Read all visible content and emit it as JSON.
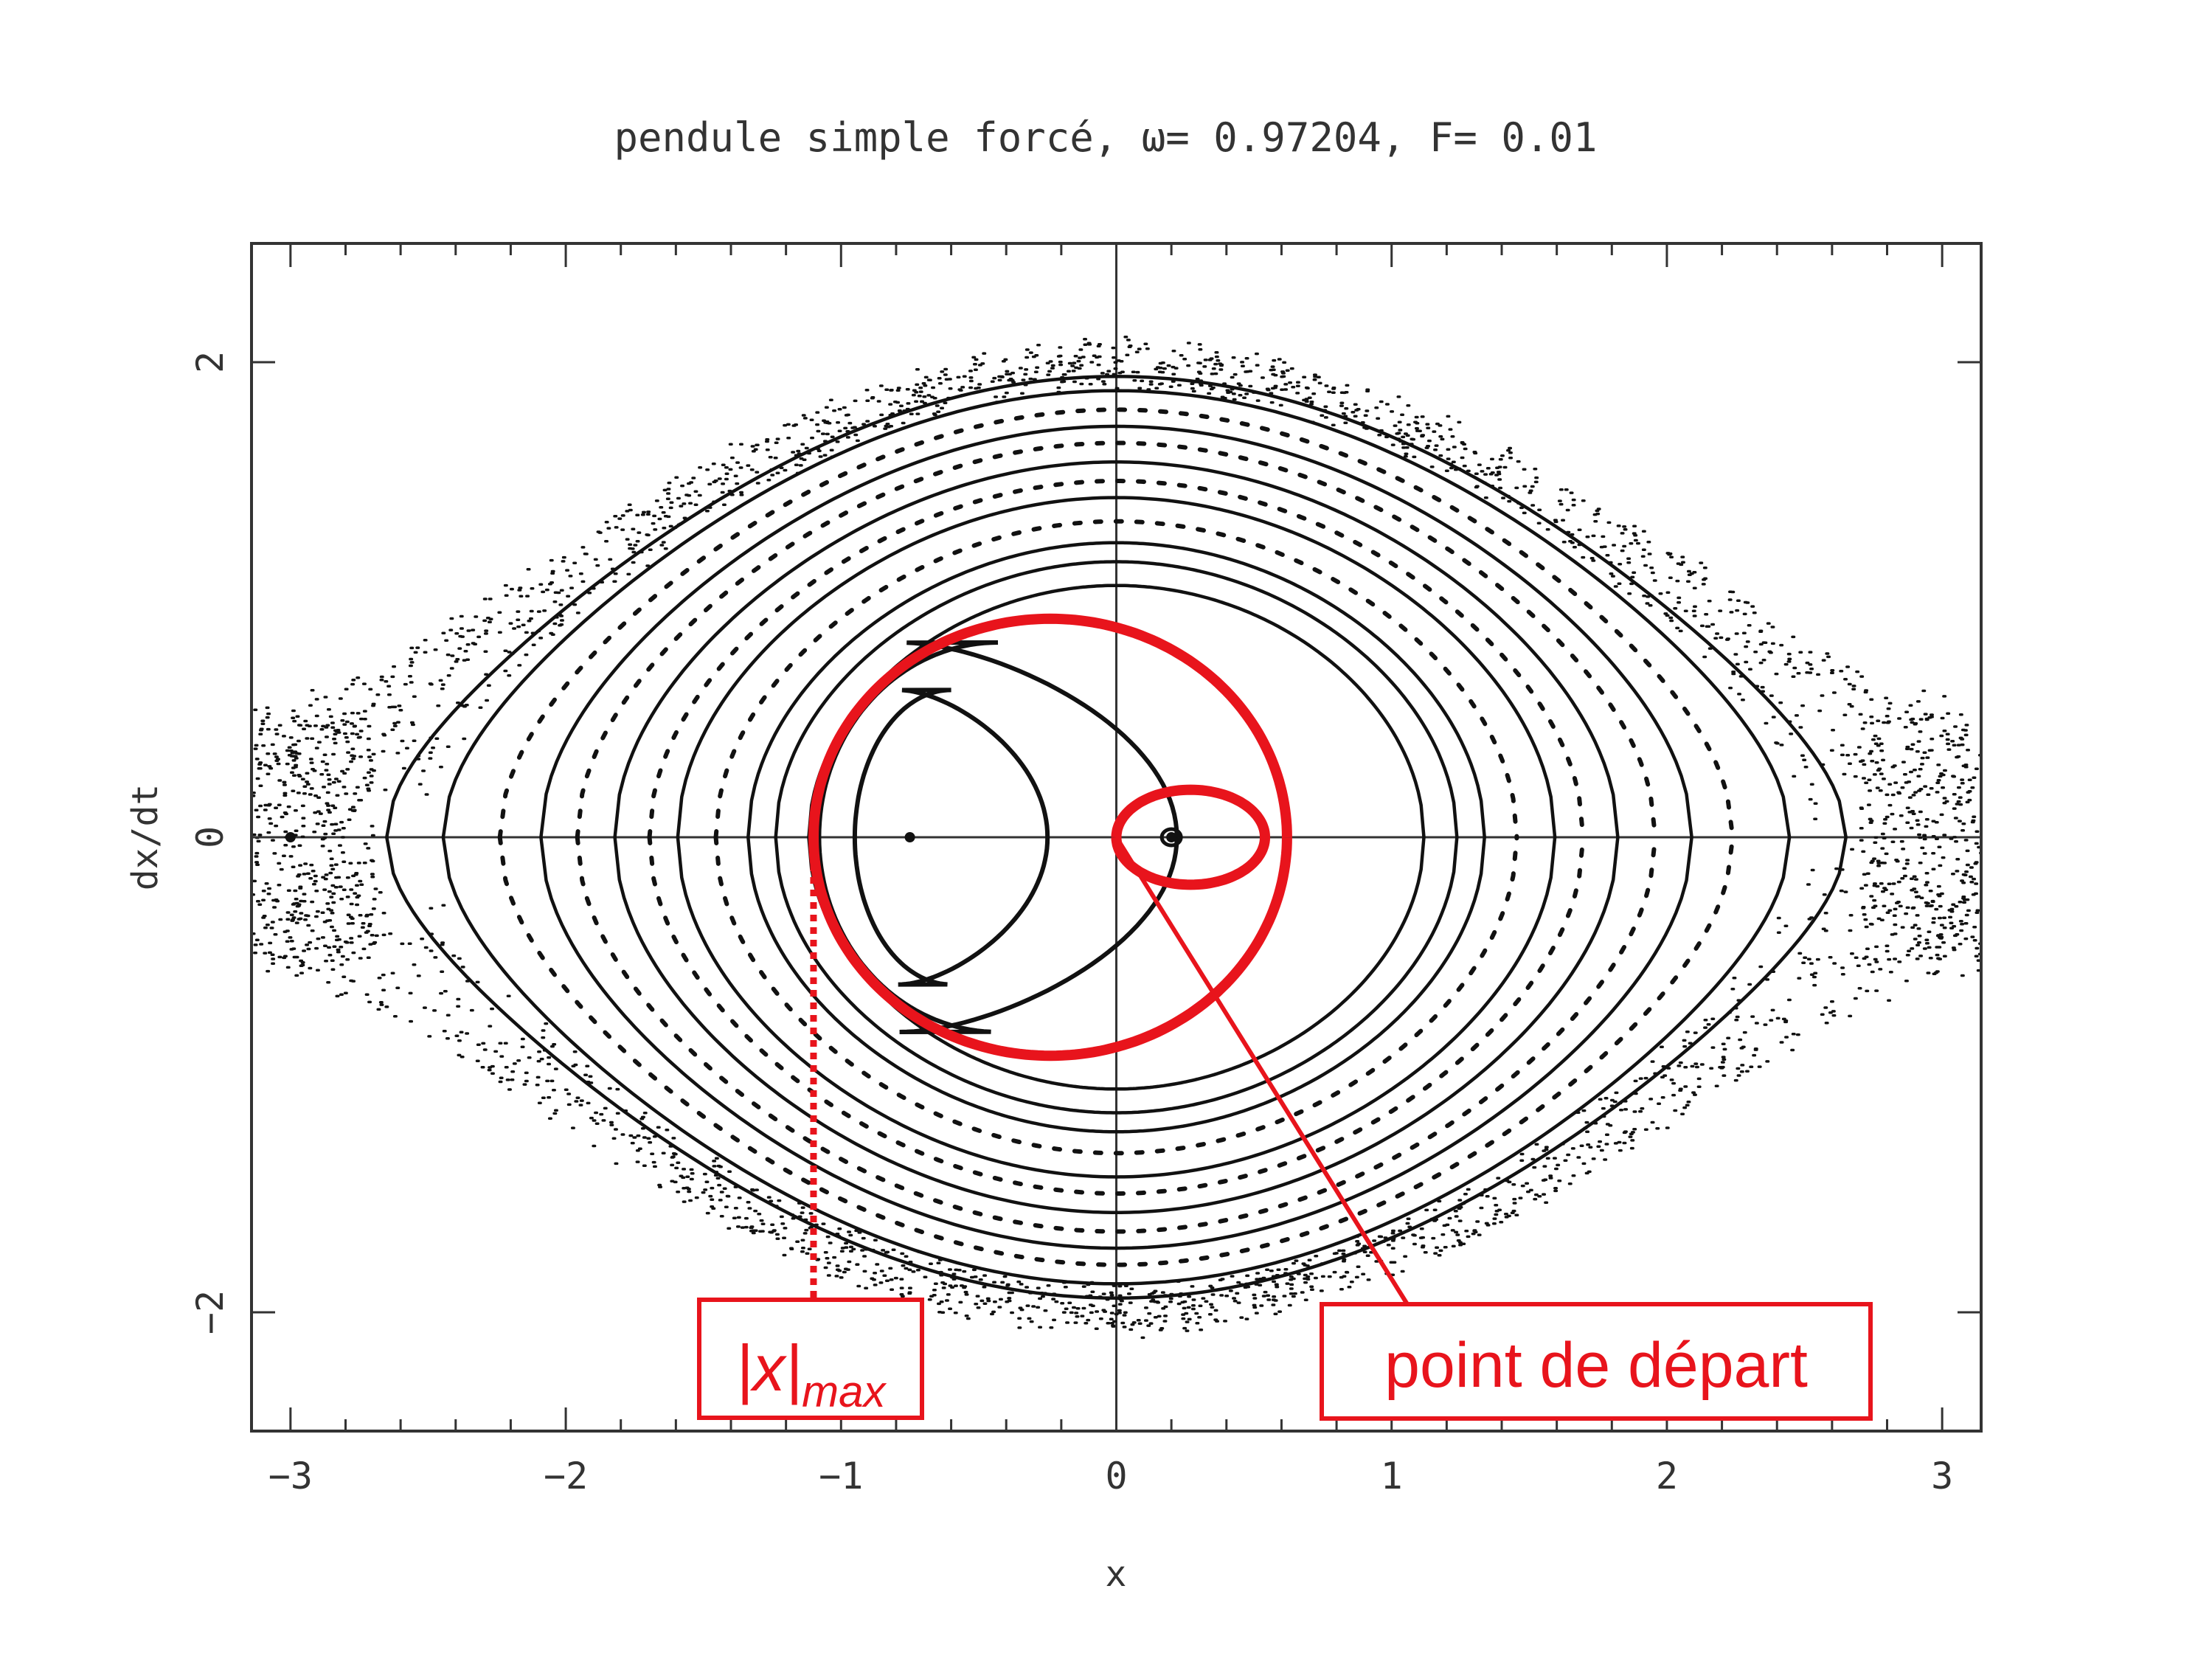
{
  "chart_data": {
    "type": "scatter",
    "title": "pendule simple forcé, ω= 0.97204, F= 0.01",
    "xlabel": "x",
    "ylabel": "dx/dt",
    "xlim": [
      -3.14159,
      3.14159
    ],
    "ylim": [
      -2.5,
      2.5
    ],
    "x_ticks": [
      -3,
      -2,
      -1,
      0,
      1,
      2,
      3
    ],
    "x_tick_labels": [
      "−3",
      "−2",
      "−1",
      "0",
      "1",
      "2",
      "3"
    ],
    "y_ticks": [
      -2,
      0,
      2
    ],
    "y_tick_labels": [
      "−2",
      "0",
      "2"
    ],
    "zero_lines": true,
    "grid": false,
    "colors": {
      "points": "#111111",
      "annotation": "#e8141c",
      "axes": "#333333"
    },
    "series": [
      {
        "kind": "invariant-curves",
        "separatrix_level": 2.0,
        "levels": [
          1.06,
          1.16,
          1.24,
          1.33,
          1.43,
          1.5,
          1.58,
          1.66,
          1.73,
          1.8,
          1.88,
          1.94
        ],
        "dashed_levels": [
          1.33,
          1.5,
          1.66,
          1.8
        ]
      },
      {
        "kind": "resonance-island",
        "crescents": [
          {
            "x_left": -0.95,
            "x_right": -0.25,
            "y_half": 0.62
          },
          {
            "x_left": -1.08,
            "x_right": 0.22,
            "y_half": 0.82
          }
        ],
        "center_points": [
          [
            -0.75,
            0.0
          ],
          [
            0.2,
            0.0
          ],
          [
            -3.0,
            0.0
          ]
        ]
      },
      {
        "kind": "trajectory",
        "description": "trajectoire du pendule forcé partant de l'origine",
        "start": [
          0.0,
          0.0
        ],
        "xmax_abs": 1.1,
        "ymax_abs": 0.92
      }
    ],
    "annotations": [
      {
        "label": "|x|",
        "sub": "max",
        "target_x": -1.1
      },
      {
        "label": "point de départ",
        "target": [
          0.0,
          0.0
        ]
      }
    ]
  }
}
